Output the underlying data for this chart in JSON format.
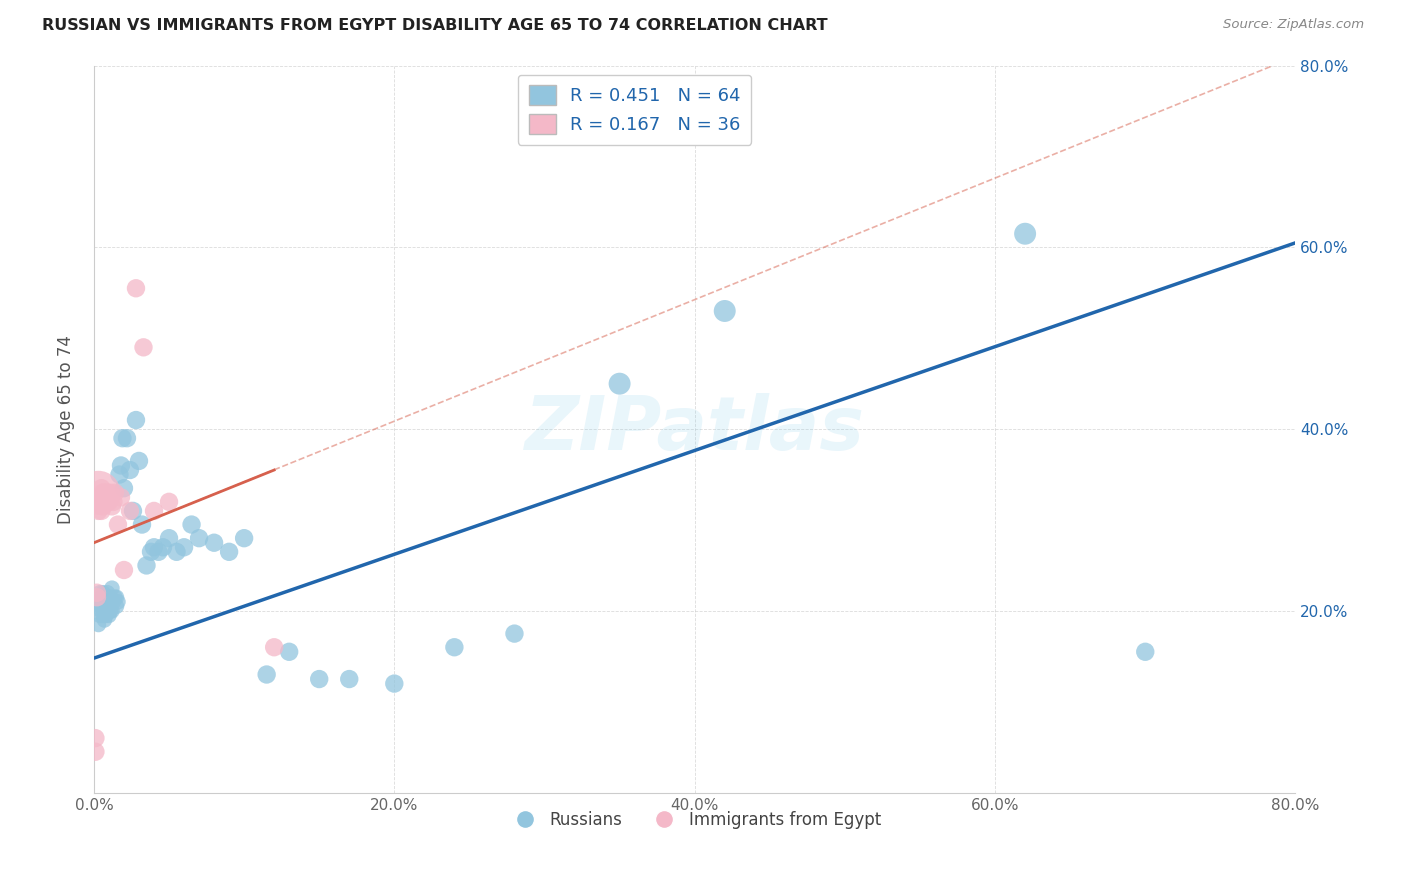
{
  "title": "RUSSIAN VS IMMIGRANTS FROM EGYPT DISABILITY AGE 65 TO 74 CORRELATION CHART",
  "source": "Source: ZipAtlas.com",
  "ylabel_left": "Disability Age 65 to 74",
  "xlim": [
    0.0,
    0.8
  ],
  "ylim": [
    0.0,
    0.8
  ],
  "watermark": "ZIPatlas",
  "blue_color": "#92c5de",
  "pink_color": "#f4b8c8",
  "trendline_blue_color": "#2166ac",
  "trendline_pink_solid_color": "#d6604d",
  "trendline_pink_dash_color": "#d6604d",
  "blue_R": 0.451,
  "blue_N": 64,
  "pink_R": 0.167,
  "pink_N": 36,
  "russians_x": [
    0.002,
    0.003,
    0.004,
    0.004,
    0.005,
    0.005,
    0.005,
    0.006,
    0.006,
    0.006,
    0.007,
    0.007,
    0.007,
    0.008,
    0.008,
    0.008,
    0.009,
    0.009,
    0.01,
    0.01,
    0.01,
    0.011,
    0.011,
    0.012,
    0.012,
    0.013,
    0.014,
    0.015,
    0.015,
    0.016,
    0.017,
    0.018,
    0.019,
    0.02,
    0.022,
    0.024,
    0.026,
    0.028,
    0.03,
    0.032,
    0.035,
    0.038,
    0.04,
    0.043,
    0.046,
    0.05,
    0.055,
    0.06,
    0.065,
    0.07,
    0.08,
    0.09,
    0.1,
    0.115,
    0.13,
    0.15,
    0.17,
    0.2,
    0.24,
    0.28,
    0.35,
    0.42,
    0.62,
    0.7
  ],
  "russians_y": [
    0.21,
    0.185,
    0.22,
    0.195,
    0.215,
    0.2,
    0.205,
    0.21,
    0.22,
    0.195,
    0.215,
    0.2,
    0.19,
    0.215,
    0.205,
    0.195,
    0.21,
    0.22,
    0.215,
    0.205,
    0.195,
    0.2,
    0.215,
    0.225,
    0.2,
    0.21,
    0.215,
    0.205,
    0.215,
    0.21,
    0.35,
    0.36,
    0.39,
    0.335,
    0.39,
    0.355,
    0.31,
    0.41,
    0.365,
    0.295,
    0.25,
    0.265,
    0.27,
    0.265,
    0.27,
    0.28,
    0.265,
    0.27,
    0.295,
    0.28,
    0.275,
    0.265,
    0.28,
    0.13,
    0.155,
    0.125,
    0.125,
    0.12,
    0.16,
    0.175,
    0.45,
    0.53,
    0.615,
    0.155
  ],
  "russians_size": [
    30,
    25,
    25,
    25,
    25,
    25,
    25,
    25,
    25,
    25,
    25,
    25,
    25,
    25,
    25,
    25,
    25,
    25,
    25,
    25,
    25,
    25,
    25,
    25,
    25,
    25,
    25,
    25,
    25,
    25,
    35,
    35,
    35,
    35,
    35,
    35,
    35,
    35,
    35,
    35,
    35,
    35,
    35,
    35,
    35,
    35,
    35,
    35,
    35,
    35,
    35,
    35,
    35,
    35,
    35,
    35,
    35,
    35,
    35,
    35,
    50,
    50,
    50,
    35
  ],
  "egypt_x": [
    0.001,
    0.001,
    0.002,
    0.002,
    0.003,
    0.003,
    0.003,
    0.004,
    0.004,
    0.005,
    0.005,
    0.005,
    0.006,
    0.006,
    0.006,
    0.007,
    0.007,
    0.008,
    0.008,
    0.009,
    0.009,
    0.01,
    0.01,
    0.011,
    0.012,
    0.013,
    0.014,
    0.016,
    0.018,
    0.02,
    0.024,
    0.028,
    0.033,
    0.04,
    0.05,
    0.12
  ],
  "egypt_y": [
    0.06,
    0.045,
    0.215,
    0.22,
    0.31,
    0.32,
    0.33,
    0.32,
    0.325,
    0.335,
    0.325,
    0.31,
    0.315,
    0.33,
    0.32,
    0.325,
    0.33,
    0.32,
    0.325,
    0.33,
    0.32,
    0.32,
    0.325,
    0.33,
    0.315,
    0.32,
    0.33,
    0.295,
    0.325,
    0.245,
    0.31,
    0.555,
    0.49,
    0.31,
    0.32,
    0.16
  ],
  "egypt_size": [
    35,
    35,
    35,
    35,
    35,
    35,
    200,
    35,
    35,
    35,
    35,
    35,
    35,
    35,
    35,
    35,
    35,
    35,
    35,
    35,
    35,
    35,
    35,
    35,
    35,
    35,
    35,
    35,
    35,
    35,
    35,
    35,
    35,
    35,
    35,
    35
  ],
  "blue_trend_x0": 0.0,
  "blue_trend_y0": 0.148,
  "blue_trend_x1": 0.8,
  "blue_trend_y1": 0.605,
  "pink_trend_solid_x0": 0.0,
  "pink_trend_solid_y0": 0.275,
  "pink_trend_solid_x1": 0.12,
  "pink_trend_solid_y1": 0.355,
  "pink_trend_dash_x0": 0.0,
  "pink_trend_dash_y0": 0.275,
  "pink_trend_dash_x1": 0.8,
  "pink_trend_dash_y1": 0.81
}
